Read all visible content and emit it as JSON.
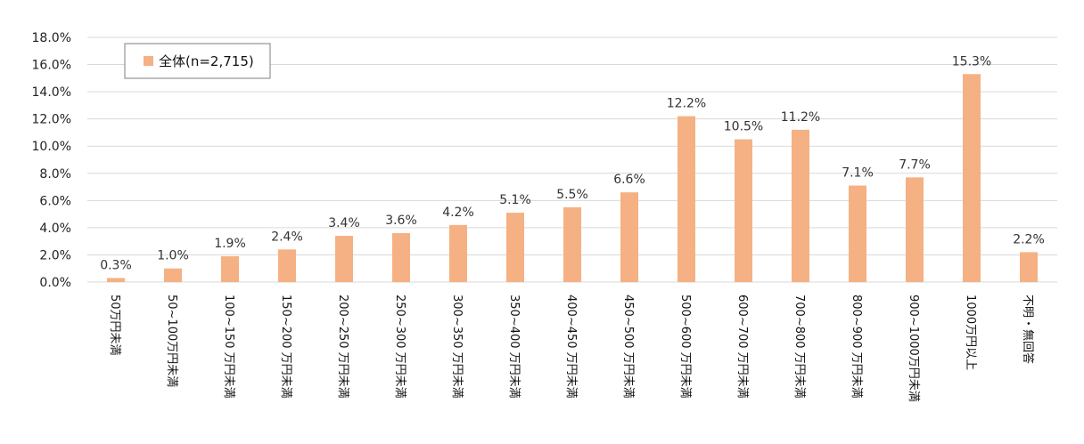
{
  "chart_data": {
    "type": "bar",
    "categories": [
      "50万円未満",
      "50~100万円未満",
      "100~150 万円未満",
      "150~200 万円未満",
      "200~250 万円未満",
      "250~300 万円未満",
      "300~350 万円未満",
      "350~400 万円未満",
      "400~450 万円未満",
      "450~500 万円未満",
      "500~600 万円未満",
      "600~700 万円未満",
      "700~800 万円未満",
      "800~900 万円未満",
      "900~1000万円未満",
      "1000万円以上",
      "不明・無回答"
    ],
    "series": [
      {
        "name": "全体(n=2,715)",
        "values": [
          0.3,
          1.0,
          1.9,
          2.4,
          3.4,
          3.6,
          4.2,
          5.1,
          5.5,
          6.6,
          12.2,
          10.5,
          11.2,
          7.1,
          7.7,
          15.3,
          2.2
        ],
        "labels": [
          "0.3%",
          "1.0%",
          "1.9%",
          "2.4%",
          "3.4%",
          "3.6%",
          "4.2%",
          "5.1%",
          "5.5%",
          "6.6%",
          "12.2%",
          "10.5%",
          "11.2%",
          "7.1%",
          "7.7%",
          "15.3%",
          "2.2%"
        ]
      }
    ],
    "yticks": [
      "0.0%",
      "2.0%",
      "4.0%",
      "6.0%",
      "8.0%",
      "10.0%",
      "12.0%",
      "14.0%",
      "16.0%",
      "18.0%"
    ],
    "ylim": [
      0,
      18
    ],
    "grid": true,
    "legend_position": "top-left",
    "bar_color": "#F5B183",
    "grid_color": "#D9D9D9",
    "title": "",
    "xlabel": "",
    "ylabel": ""
  }
}
